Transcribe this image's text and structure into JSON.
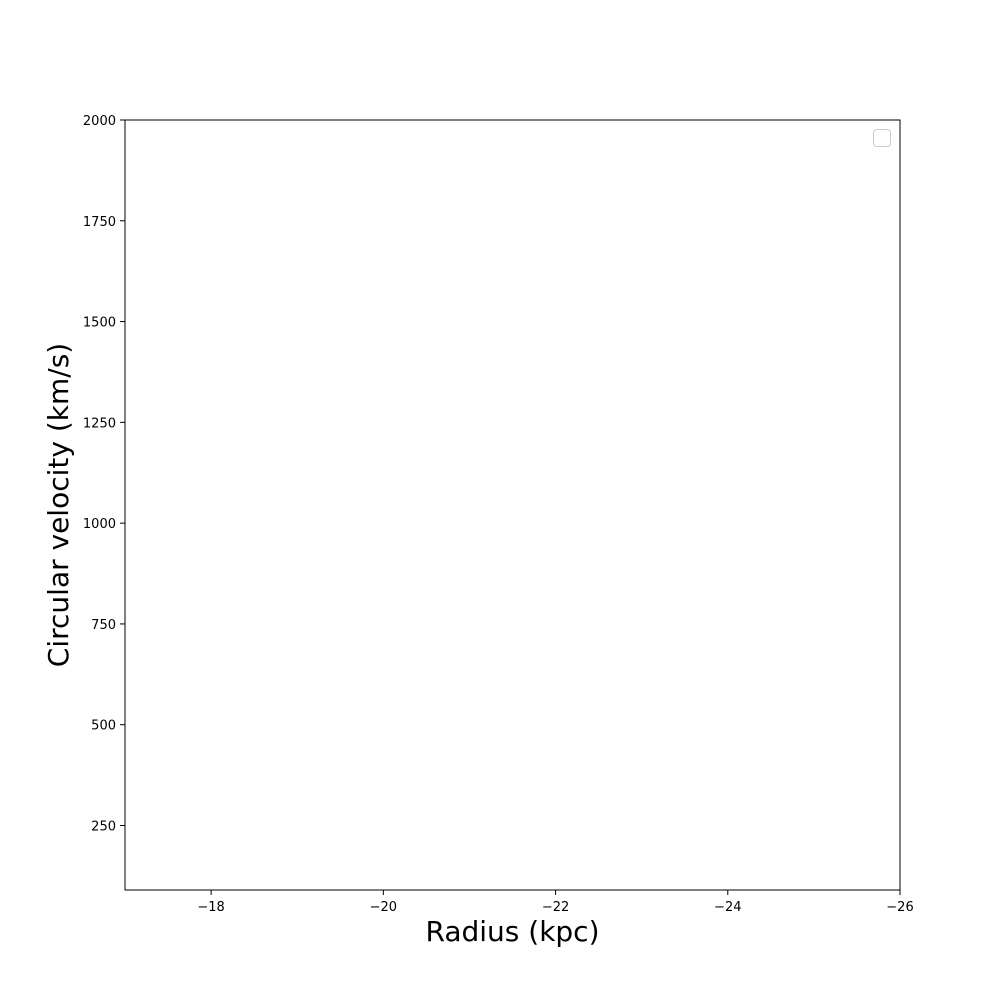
{
  "chart_data": {
    "type": "line",
    "title": "",
    "xlabel": "Radius (kpc)",
    "ylabel": "Circular velocity (km/s)",
    "xlim": [
      -17,
      -26
    ],
    "ylim": [
      90,
      2000
    ],
    "x_inverted": true,
    "xticks": [
      {
        "value": -18,
        "label": "−18"
      },
      {
        "value": -20,
        "label": "−20"
      },
      {
        "value": -22,
        "label": "−22"
      },
      {
        "value": -24,
        "label": "−24"
      },
      {
        "value": -26,
        "label": "−26"
      }
    ],
    "yticks": [
      {
        "value": 250,
        "label": "250"
      },
      {
        "value": 500,
        "label": "500"
      },
      {
        "value": 750,
        "label": "750"
      },
      {
        "value": 1000,
        "label": "1000"
      },
      {
        "value": 1250,
        "label": "1250"
      },
      {
        "value": 1500,
        "label": "1500"
      },
      {
        "value": 1750,
        "label": "1750"
      },
      {
        "value": 2000,
        "label": "2000"
      }
    ],
    "series": [],
    "grid": false,
    "legend": {
      "position": "top-right",
      "entries": []
    }
  },
  "colors": {
    "axis": "#000000",
    "background": "#ffffff",
    "legend_border": "#cccccc"
  }
}
